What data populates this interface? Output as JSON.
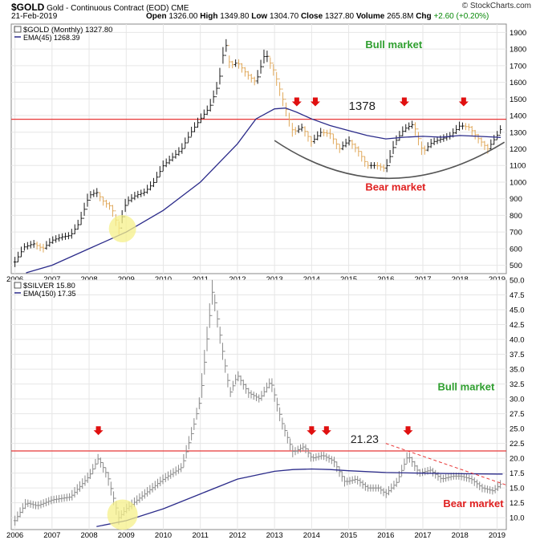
{
  "header": {
    "symbol": "$GOLD",
    "name": "Gold - Continuous Contract (EOD)",
    "exchange": "CME",
    "date": "21-Feb-2019",
    "open_label": "Open",
    "open": "1326.00",
    "high_label": "High",
    "high": "1349.80",
    "low_label": "Low",
    "low": "1304.70",
    "close_label": "Close",
    "close": "1327.80",
    "volume_label": "Volume",
    "volume": "265.8M",
    "chg_label": "Chg",
    "chg": "+2.60 (+0.20%)",
    "watermark": "© StockCharts.com"
  },
  "colors": {
    "up_bar": "#1a1a1a",
    "down_bar": "#e0a85a",
    "silver_bar": "#8a8a8a",
    "ema": "#2b2b8a",
    "resistance": "#e83838",
    "bull_text": "#2e9e2e",
    "bear_text": "#e02020",
    "highlight": "#f5f08a",
    "arrow": "#e01010"
  },
  "chart_data": [
    {
      "type": "line",
      "panel": "gold",
      "legend": [
        "$GOLD (Monthly) 1327.80",
        "EMA(45) 1268.39"
      ],
      "x_ticks": [
        "2006",
        "2007",
        "2008",
        "2009",
        "2010",
        "2011",
        "2012",
        "2013",
        "2014",
        "2015",
        "2016",
        "2017",
        "2018",
        "2019"
      ],
      "y_ticks": [
        500,
        600,
        700,
        800,
        900,
        1000,
        1100,
        1200,
        1300,
        1400,
        1500,
        1600,
        1700,
        1800,
        1900
      ],
      "ylim": [
        450,
        1950
      ],
      "series": [
        {
          "name": "$GOLD (Monthly)",
          "x": [
            2006.0,
            2006.25,
            2006.5,
            2006.75,
            2007.0,
            2007.25,
            2007.5,
            2007.75,
            2008.0,
            2008.2,
            2008.4,
            2008.6,
            2008.8,
            2009.0,
            2009.25,
            2009.5,
            2009.75,
            2010.0,
            2010.25,
            2010.5,
            2010.75,
            2011.0,
            2011.25,
            2011.5,
            2011.67,
            2011.8,
            2012.0,
            2012.25,
            2012.5,
            2012.75,
            2013.0,
            2013.25,
            2013.5,
            2013.75,
            2014.0,
            2014.25,
            2014.5,
            2014.75,
            2015.0,
            2015.25,
            2015.5,
            2015.75,
            2016.0,
            2016.25,
            2016.5,
            2016.75,
            2017.0,
            2017.25,
            2017.5,
            2017.75,
            2018.0,
            2018.25,
            2018.5,
            2018.75,
            2019.0,
            2019.12
          ],
          "y": [
            520,
            610,
            630,
            600,
            650,
            670,
            680,
            760,
            920,
            940,
            880,
            850,
            720,
            880,
            920,
            940,
            1000,
            1100,
            1150,
            1200,
            1300,
            1380,
            1450,
            1600,
            1850,
            1700,
            1720,
            1650,
            1600,
            1780,
            1660,
            1480,
            1300,
            1330,
            1240,
            1300,
            1290,
            1200,
            1250,
            1190,
            1100,
            1100,
            1080,
            1240,
            1320,
            1350,
            1180,
            1240,
            1260,
            1280,
            1340,
            1330,
            1260,
            1200,
            1280,
            1327.8
          ]
        },
        {
          "name": "EMA(45)",
          "x": [
            2006.3,
            2007,
            2008,
            2009,
            2010,
            2011,
            2012,
            2012.5,
            2013,
            2013.3,
            2013.6,
            2014,
            2014.5,
            2015,
            2015.5,
            2016,
            2016.5,
            2017,
            2017.5,
            2018,
            2018.5,
            2019,
            2019.1
          ],
          "y": [
            455,
            500,
            600,
            700,
            830,
            1000,
            1230,
            1380,
            1440,
            1445,
            1420,
            1380,
            1340,
            1310,
            1280,
            1260,
            1270,
            1275,
            1270,
            1280,
            1275,
            1270,
            1268.39
          ]
        }
      ],
      "resistance": 1378,
      "annotations": [
        "1378",
        "Bull market",
        "Bear market"
      ],
      "arrow_years": [
        2013.6,
        2014.1,
        2016.5,
        2018.1
      ]
    },
    {
      "type": "line",
      "panel": "silver",
      "legend": [
        "$SILVER 15.80",
        "EMA(150) 17.35"
      ],
      "x_ticks": [
        "2006",
        "2007",
        "2008",
        "2009",
        "2010",
        "2011",
        "2012",
        "2013",
        "2014",
        "2015",
        "2016",
        "2017",
        "2018",
        "2019"
      ],
      "y_ticks": [
        10.0,
        12.5,
        15.0,
        17.5,
        20.0,
        22.5,
        25.0,
        27.5,
        30.0,
        32.5,
        35.0,
        37.5,
        40.0,
        42.5,
        45.0,
        47.5,
        50.0
      ],
      "ylim": [
        8,
        50
      ],
      "series": [
        {
          "name": "$SILVER",
          "x": [
            2006.0,
            2006.3,
            2006.6,
            2007.0,
            2007.5,
            2008.0,
            2008.25,
            2008.5,
            2008.8,
            2009.0,
            2009.5,
            2010.0,
            2010.5,
            2010.8,
            2011.0,
            2011.33,
            2011.6,
            2011.8,
            2012.0,
            2012.3,
            2012.6,
            2012.9,
            2013.2,
            2013.5,
            2013.8,
            2014.0,
            2014.3,
            2014.6,
            2014.9,
            2015.2,
            2015.5,
            2015.8,
            2016.0,
            2016.3,
            2016.6,
            2016.9,
            2017.2,
            2017.5,
            2017.8,
            2018.0,
            2018.3,
            2018.6,
            2018.9,
            2019.12
          ],
          "y": [
            9.5,
            12.5,
            12.0,
            13.0,
            13.5,
            17.0,
            20.0,
            17.0,
            10.0,
            11.5,
            14.0,
            16.5,
            18.5,
            25.0,
            30.0,
            48.5,
            38.0,
            31.0,
            34.0,
            31.0,
            30.0,
            33.0,
            26.0,
            21.0,
            22.0,
            20.0,
            20.5,
            19.5,
            16.0,
            16.5,
            15.0,
            15.0,
            14.0,
            16.0,
            20.5,
            17.5,
            18.0,
            16.5,
            17.0,
            17.0,
            16.5,
            15.0,
            14.5,
            15.8
          ]
        },
        {
          "name": "EMA(150)",
          "x": [
            2008.2,
            2009,
            2010,
            2011,
            2012,
            2013,
            2013.5,
            2014,
            2014.5,
            2015,
            2016,
            2017,
            2018,
            2019,
            2019.15
          ],
          "y": [
            8.5,
            9.5,
            11.5,
            14.0,
            16.5,
            17.8,
            18.1,
            18.2,
            18.1,
            17.9,
            17.6,
            17.5,
            17.4,
            17.35,
            17.35
          ]
        }
      ],
      "resistance": 21.23,
      "annotations": [
        "21.23",
        "Bull market",
        "Bear market"
      ],
      "arrow_years": [
        2008.25,
        2014.0,
        2014.4,
        2016.6
      ]
    }
  ]
}
